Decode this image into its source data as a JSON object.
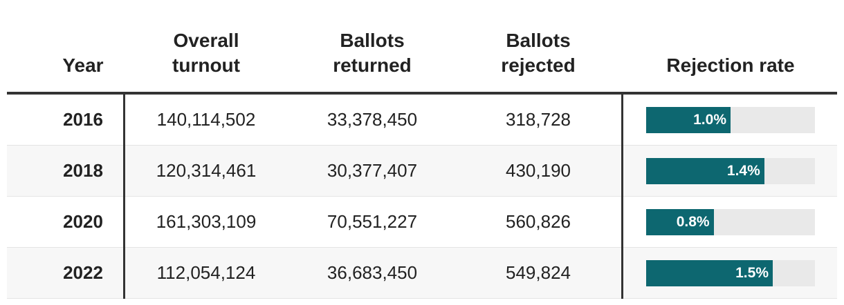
{
  "chart_data": {
    "type": "table",
    "columns": [
      "Year",
      "Overall turnout",
      "Ballots returned",
      "Ballots rejected",
      "Rejection rate"
    ],
    "rows": [
      {
        "year": "2016",
        "overall_turnout": "140,114,502",
        "ballots_returned": "33,378,450",
        "ballots_rejected": "318,728",
        "rejection_rate": "1.0%",
        "rejection_rate_value": 1.0
      },
      {
        "year": "2018",
        "overall_turnout": "120,314,461",
        "ballots_returned": "30,377,407",
        "ballots_rejected": "430,190",
        "rejection_rate": "1.4%",
        "rejection_rate_value": 1.4
      },
      {
        "year": "2020",
        "overall_turnout": "161,303,109",
        "ballots_returned": "70,551,227",
        "ballots_rejected": "560,826",
        "rejection_rate": "0.8%",
        "rejection_rate_value": 0.8
      },
      {
        "year": "2022",
        "overall_turnout": "112,054,124",
        "ballots_returned": "36,683,450",
        "ballots_rejected": "549,824",
        "rejection_rate": "1.5%",
        "rejection_rate_value": 1.5
      }
    ],
    "bar_scale_max": 2.0,
    "colors": {
      "bar": "#0d6770",
      "track": "#e9e9e9",
      "row_alt": "#f7f7f7"
    }
  }
}
